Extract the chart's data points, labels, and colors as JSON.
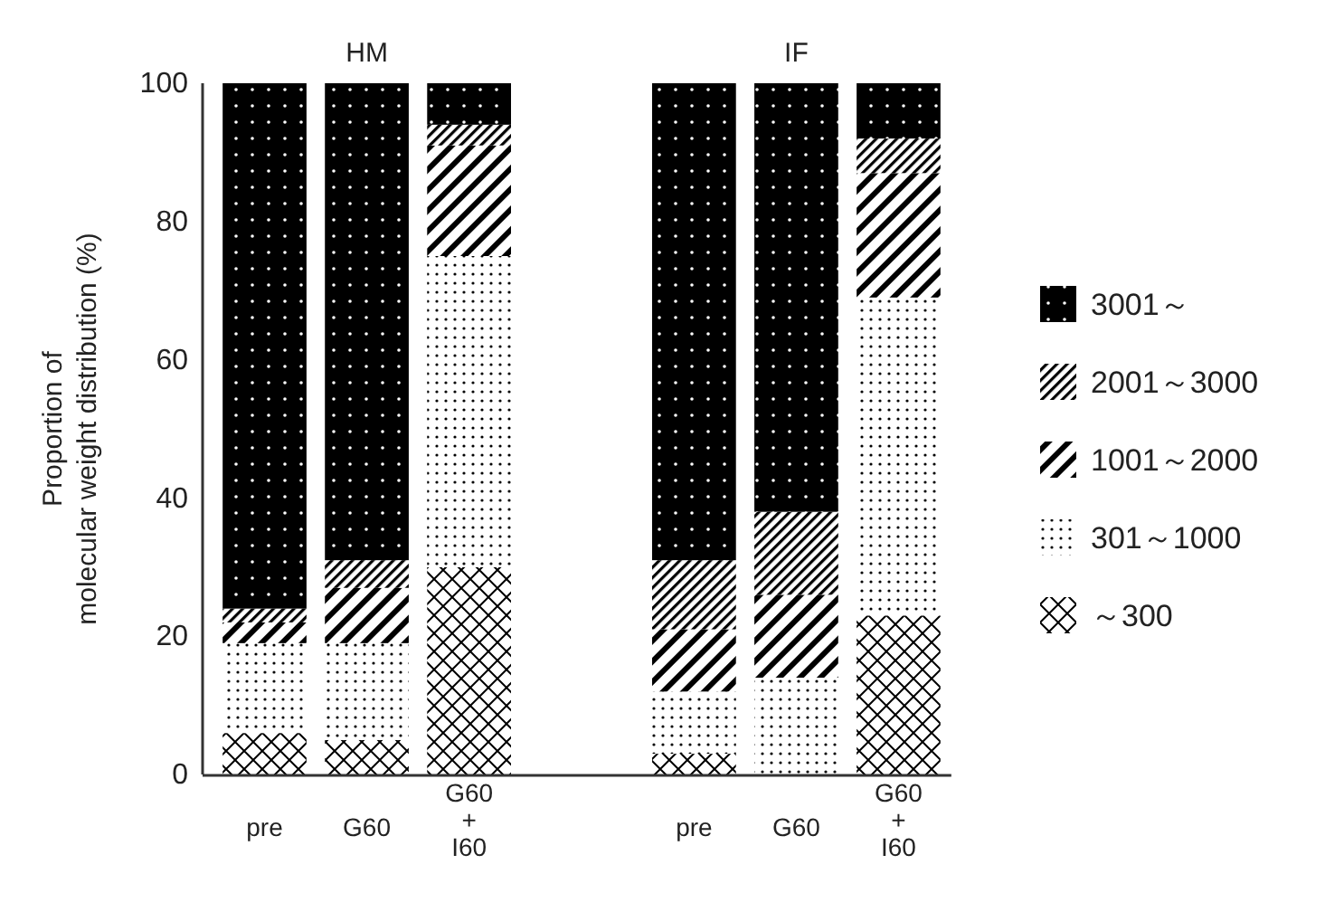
{
  "chart_data": {
    "type": "bar",
    "stacked": true,
    "ylabel": "Proportion of\nmolecular weight distribution (%)",
    "categories": [
      "pre",
      "G60",
      "G60\n+\nI60",
      "pre",
      "G60",
      "G60\n+\nI60"
    ],
    "annotations": [
      "HM",
      "IF"
    ],
    "series": [
      {
        "name": "～300",
        "color": "#000000",
        "values": [
          6,
          5,
          30,
          3,
          0,
          23
        ]
      },
      {
        "name": "301～1000",
        "color": "#000000",
        "values": [
          13,
          14,
          45,
          9,
          14,
          46
        ]
      },
      {
        "name": "1001～2000",
        "color": "#000000",
        "values": [
          3,
          8,
          16,
          9,
          12,
          18
        ]
      },
      {
        "name": "2001～3000",
        "color": "#000000",
        "values": [
          2,
          4,
          3,
          10,
          12,
          5
        ]
      },
      {
        "name": "3001～",
        "color": "#000000",
        "values": [
          76,
          69,
          6,
          69,
          62,
          8
        ]
      }
    ],
    "ylim": [
      0,
      100
    ],
    "yticks": [
      0,
      20,
      40,
      60,
      80,
      100
    ],
    "grid": false,
    "legend": "right"
  }
}
